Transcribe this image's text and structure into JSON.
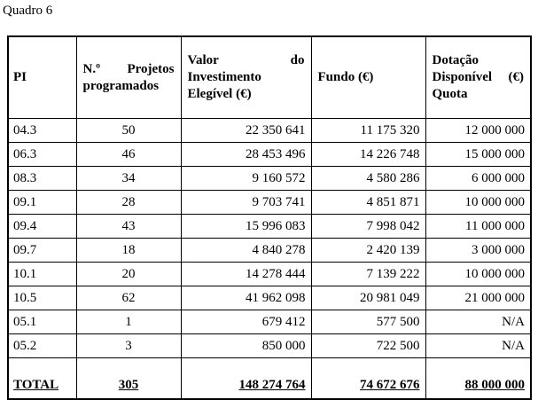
{
  "page": {
    "title": "Quadro 6"
  },
  "table": {
    "header": {
      "pi": "PI",
      "projetos": {
        "l1a": "N.º",
        "l1b": "Projetos",
        "l2": "programados"
      },
      "valor": {
        "l1a": "Valor",
        "l1b": "do",
        "l2": "Investimento",
        "l3": "Elegível (€)"
      },
      "fundo": "Fundo (€)",
      "dotacao": {
        "l1": "Dotação",
        "l2a": "Disponível",
        "l2b": "(€)",
        "l3": "Quota"
      }
    },
    "rows": [
      {
        "pi": "04.3",
        "n": "50",
        "valor": "22 350 641",
        "fundo": "11 175 320",
        "dotacao": "12 000 000"
      },
      {
        "pi": "06.3",
        "n": "46",
        "valor": "28 453 496",
        "fundo": "14 226 748",
        "dotacao": "15 000 000"
      },
      {
        "pi": "08.3",
        "n": "34",
        "valor": "9 160 572",
        "fundo": "4 580 286",
        "dotacao": "6 000 000"
      },
      {
        "pi": "09.1",
        "n": "28",
        "valor": "9 703 741",
        "fundo": "4 851 871",
        "dotacao": "10 000 000"
      },
      {
        "pi": "09.4",
        "n": "43",
        "valor": "15 996 083",
        "fundo": "7 998 042",
        "dotacao": "11 000 000"
      },
      {
        "pi": "09.7",
        "n": "18",
        "valor": "4 840 278",
        "fundo": "2 420 139",
        "dotacao": "3 000 000"
      },
      {
        "pi": "10.1",
        "n": "20",
        "valor": "14 278 444",
        "fundo": "7 139 222",
        "dotacao": "10 000 000"
      },
      {
        "pi": "10.5",
        "n": "62",
        "valor": "41 962 098",
        "fundo": "20 981 049",
        "dotacao": "21 000 000"
      },
      {
        "pi": "05.1",
        "n": "1",
        "valor": "679 412",
        "fundo": "577 500",
        "dotacao": "N/A"
      },
      {
        "pi": "05.2",
        "n": "3",
        "valor": "850 000",
        "fundo": "722 500",
        "dotacao": "N/A"
      }
    ],
    "total": {
      "pi": "TOTAL",
      "n": "305",
      "valor": "148 274 764",
      "fundo": "74 672 676",
      "dotacao": "88 000 000"
    }
  }
}
